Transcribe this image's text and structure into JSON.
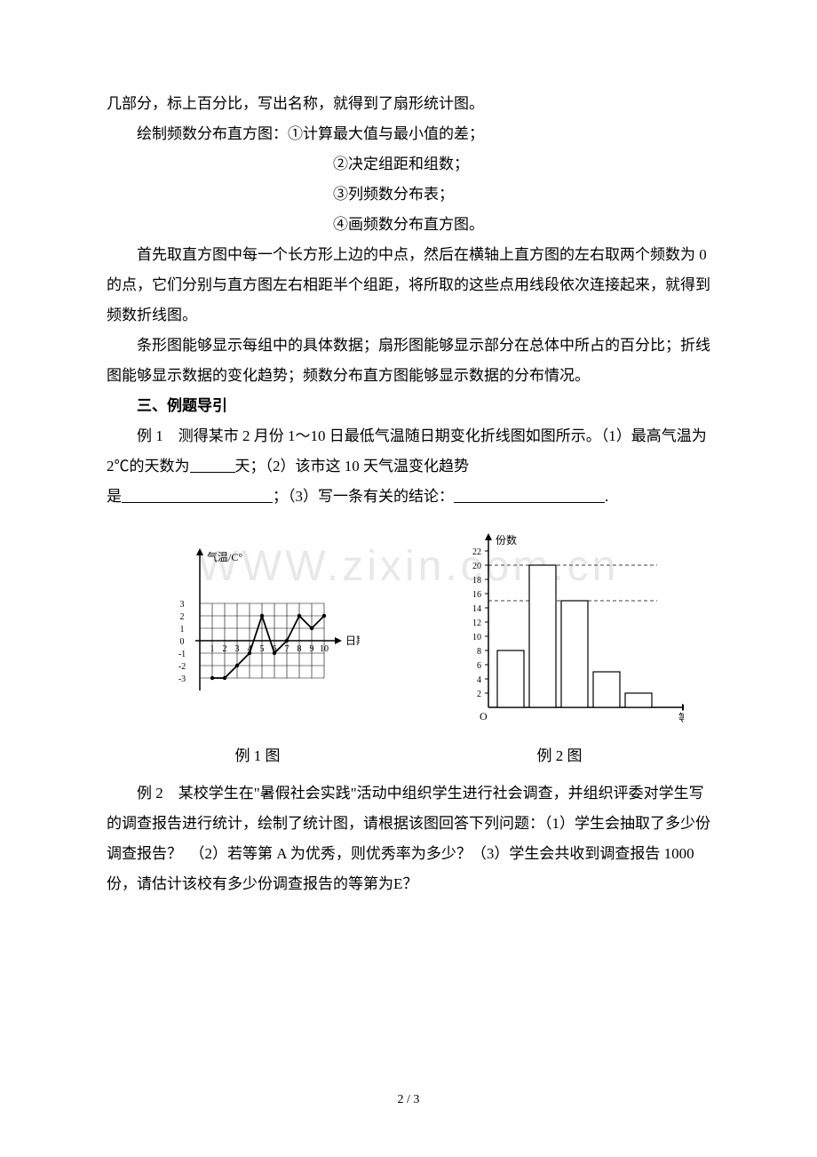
{
  "text": {
    "l1": "几部分，标上百分比，写出名称，就得到了扇形统计图。",
    "l2": "绘制频数分布直方图：①计算最大值与最小值的差；",
    "l3": "②决定组距和组数；",
    "l4": "③列频数分布表；",
    "l5": "④画频数分布直方图。",
    "l6": "首先取直方图中每一个长方形上边的中点，然后在横轴上直方图的左右取两个频数为 0 的点，它们分别与直方图左右相距半个组距，将所取的这些点用线段依次连接起来，就得到频数折线图。",
    "l7": "条形图能够显示每组中的具体数据；扇形图能够显示部分在总体中所占的百分比；折线图能够显示数据的变化趋势；频数分布直方图能够显示数据的分布情况。",
    "h3": "三、例题导引",
    "ex1a": "例 1　测得某市 2 月份 1～10 日最低气温随日期变化折线图如图所示。（1）最高气温为 2℃的天数为",
    "ex1b": "天；（2）该市这 10 天气温变化趋势",
    "ex1c": "是",
    "ex1d": "；（3）写一条有关的结论：",
    "cap1": "例 1 图",
    "cap2": "例 2 图",
    "ex2a": "例 2　某校学生在\"暑假社会实践\"活动中组织学生进行社会调查，并组织评委对学生写的调查报告进行统计，绘制了统计图，请根据该图回答下列问题：（1）学生会抽取了多少份调查报告？　（2）若等第 A 为优秀，则优秀率为多少？（3）学生会共收到调查报告 1000 份，请估计该校有多少份调查报告的等第为E？",
    "pagenum": "2 / 3"
  },
  "watermark": "WWW.zixin.com.cn",
  "chart1": {
    "ylabel": "气温/C°",
    "xlabel": "日期/日",
    "yticks": [
      "3",
      "2",
      "1",
      "0",
      "-1",
      "-2",
      "-3"
    ],
    "xticks": [
      "1",
      "2",
      "3",
      "4",
      "5",
      "6",
      "7",
      "8",
      "9",
      "10"
    ],
    "points": [
      {
        "x": 1,
        "y": -3
      },
      {
        "x": 2,
        "y": -3
      },
      {
        "x": 3,
        "y": -2
      },
      {
        "x": 4,
        "y": -1
      },
      {
        "x": 5,
        "y": 2
      },
      {
        "x": 6,
        "y": -1
      },
      {
        "x": 7,
        "y": 0
      },
      {
        "x": 8,
        "y": 2
      },
      {
        "x": 9,
        "y": 1
      },
      {
        "x": 10,
        "y": 2
      }
    ],
    "axis_color": "#000000",
    "grid_color": "#000000",
    "line_color": "#000000",
    "bg": "#ffffff",
    "font_size": 10
  },
  "chart2": {
    "ylabel": "份数",
    "xlabel": "等第",
    "yticks": [
      2,
      4,
      6,
      8,
      10,
      12,
      14,
      16,
      18,
      20,
      22
    ],
    "bars": [
      {
        "h": 8
      },
      {
        "h": 20
      },
      {
        "h": 15
      },
      {
        "h": 5
      },
      {
        "h": 2
      }
    ],
    "highlight_dash_y": [
      15,
      20
    ],
    "axis_color": "#000000",
    "bar_fill": "#ffffff",
    "bar_stroke": "#000000",
    "dash_color": "#000000",
    "font_size": 10
  }
}
